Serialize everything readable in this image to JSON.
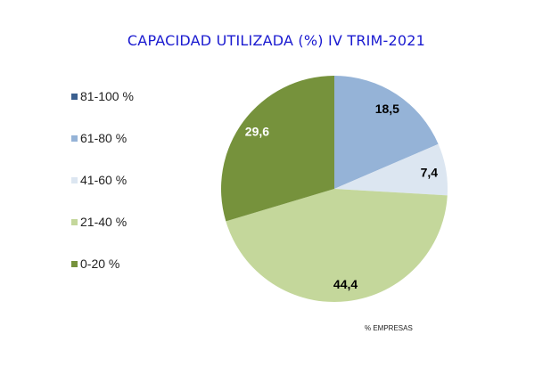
{
  "chart_data": {
    "type": "pie",
    "title": "CAPACIDAD UTILIZADA (%) IV TRIM-2021",
    "categories": [
      "81-100 %",
      "61-80 %",
      "41-60 %",
      "21-40 %",
      "0-20 %"
    ],
    "values": [
      0,
      18.5,
      7.4,
      44.4,
      29.6
    ],
    "data_labels": [
      "",
      "18,5",
      "7,4",
      "44,4",
      "29,6"
    ],
    "colors": [
      "#3b5f8f",
      "#95b3d7",
      "#dce6f1",
      "#c4d79b",
      "#76923c"
    ],
    "label_colors": [
      "#000000",
      "#000000",
      "#000000",
      "#000000",
      "#ffffff"
    ],
    "legend_position": "left",
    "xlabel": "% EMPRESAS"
  }
}
